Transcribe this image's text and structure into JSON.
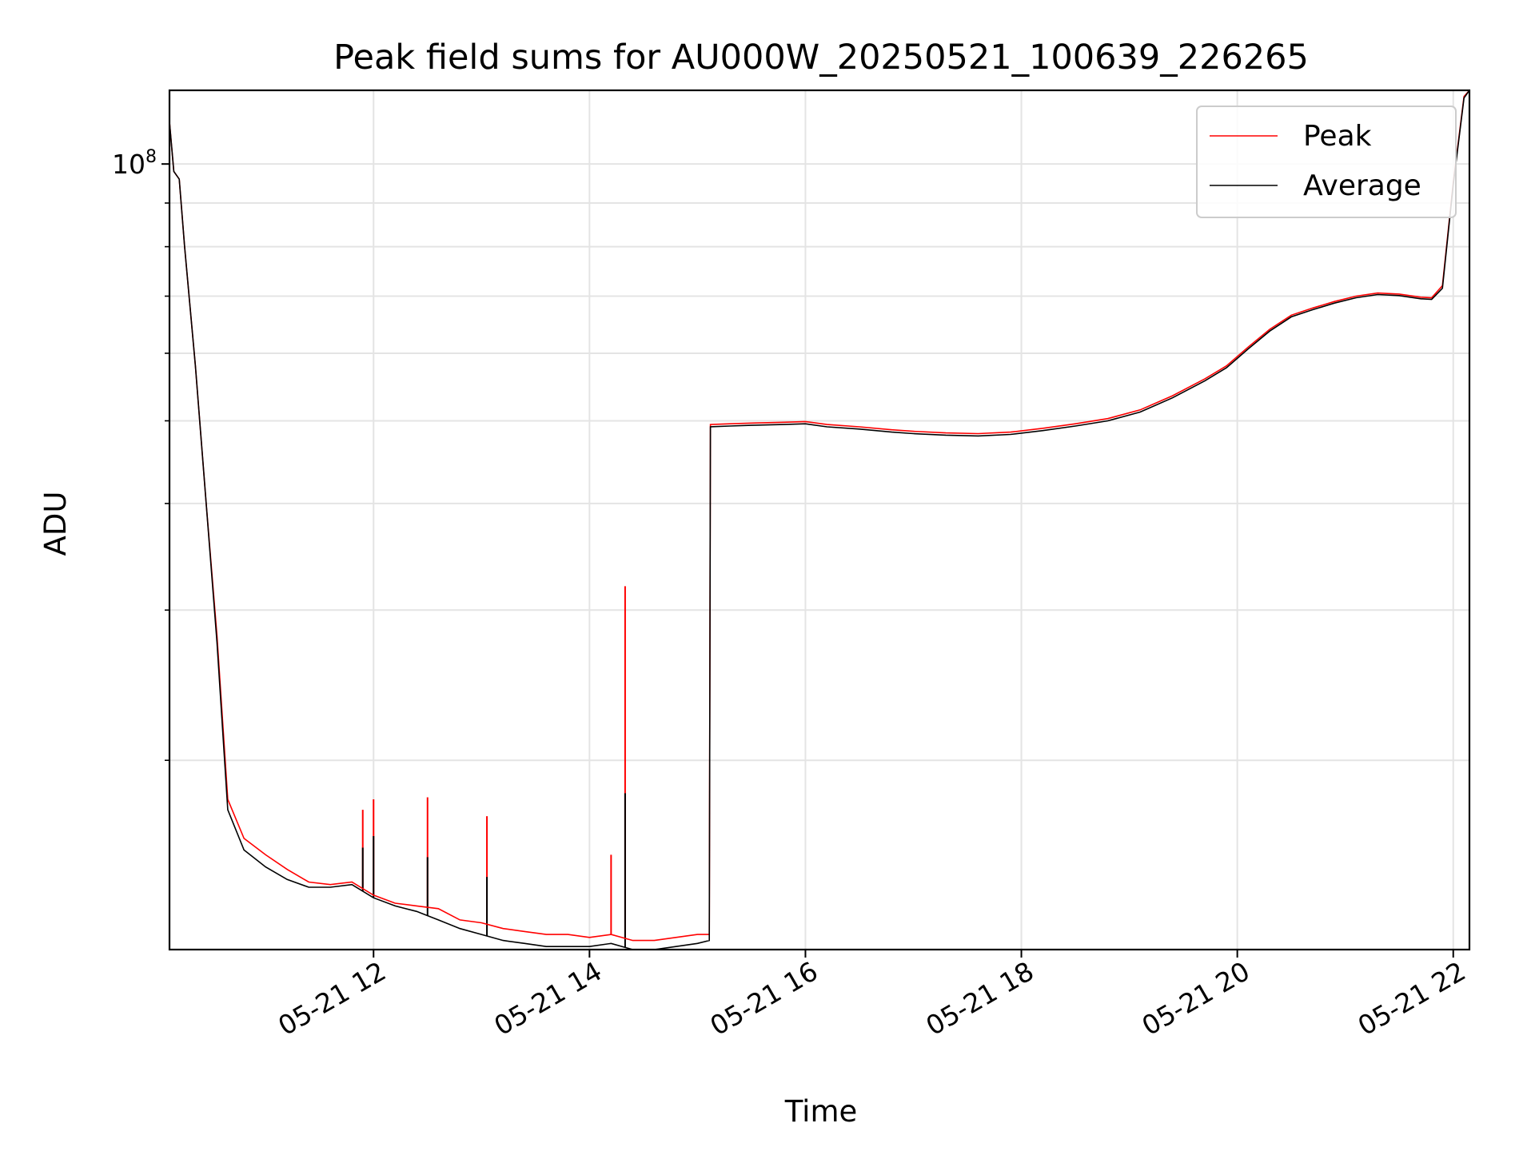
{
  "chart_data": {
    "type": "line",
    "title": "Peak field sums for AU000W_20250521_100639_226265",
    "xlabel": "Time",
    "ylabel": "ADU",
    "y_scale": "log",
    "ylim": [
      12000000,
      122000000
    ],
    "xlim_hours": [
      10.11,
      22.15
    ],
    "grid": true,
    "legend_position": "top-right",
    "y_major_tick_labels": [
      {
        "value": 100000000,
        "base": "10",
        "exp": "8"
      }
    ],
    "y_minor_ticks": [
      20000000,
      30000000,
      40000000,
      50000000,
      60000000,
      70000000,
      80000000,
      90000000
    ],
    "x_tick_labels": [
      "05-21 12",
      "05-21 14",
      "05-21 16",
      "05-21 18",
      "05-21 20",
      "05-21 22"
    ],
    "x_tick_hours": [
      12,
      14,
      16,
      18,
      20,
      22
    ],
    "series": [
      {
        "name": "Peak",
        "color": "#ff0000",
        "x_hours": [
          10.11,
          10.15,
          10.2,
          10.25,
          10.35,
          10.45,
          10.55,
          10.65,
          10.8,
          11.0,
          11.2,
          11.4,
          11.6,
          11.8,
          12.0,
          12.2,
          12.4,
          12.6,
          12.8,
          13.0,
          13.2,
          13.4,
          13.6,
          13.8,
          14.0,
          14.2,
          14.4,
          14.6,
          14.8,
          15.0,
          15.11,
          15.12,
          15.3,
          15.5,
          15.8,
          16.0,
          16.2,
          16.5,
          16.8,
          17.0,
          17.3,
          17.6,
          17.9,
          18.2,
          18.5,
          18.8,
          19.1,
          19.4,
          19.7,
          19.9,
          20.1,
          20.3,
          20.5,
          20.7,
          20.9,
          21.1,
          21.3,
          21.5,
          21.7,
          21.8,
          21.9,
          22.0,
          22.1,
          22.15
        ],
        "y_values": [
          112000000,
          98000000,
          96000000,
          80000000,
          58000000,
          40000000,
          28000000,
          18000000,
          16200000,
          15500000,
          14900000,
          14400000,
          14300000,
          14400000,
          13900000,
          13600000,
          13500000,
          13400000,
          13000000,
          12900000,
          12700000,
          12600000,
          12500000,
          12500000,
          12400000,
          12500000,
          12300000,
          12300000,
          12400000,
          12500000,
          12500000,
          49500000,
          49600000,
          49700000,
          49800000,
          49900000,
          49500000,
          49200000,
          48800000,
          48600000,
          48400000,
          48300000,
          48500000,
          49000000,
          49600000,
          50300000,
          51500000,
          53500000,
          56000000,
          58000000,
          61000000,
          64000000,
          66500000,
          67800000,
          69000000,
          70000000,
          70600000,
          70400000,
          69800000,
          69700000,
          72000000,
          95000000,
          120000000,
          122000000
        ],
        "spikes": [
          {
            "x_hour": 11.9,
            "y": 17500000
          },
          {
            "x_hour": 12.0,
            "y": 18000000
          },
          {
            "x_hour": 12.5,
            "y": 18100000
          },
          {
            "x_hour": 13.05,
            "y": 17200000
          },
          {
            "x_hour": 14.2,
            "y": 15500000
          },
          {
            "x_hour": 14.33,
            "y": 32000000
          }
        ]
      },
      {
        "name": "Average",
        "color": "#000000",
        "x_hours": [
          10.11,
          10.15,
          10.2,
          10.25,
          10.35,
          10.45,
          10.55,
          10.65,
          10.8,
          11.0,
          11.2,
          11.4,
          11.6,
          11.8,
          12.0,
          12.2,
          12.4,
          12.6,
          12.8,
          13.0,
          13.2,
          13.4,
          13.6,
          13.8,
          14.0,
          14.2,
          14.4,
          14.6,
          14.8,
          15.0,
          15.11,
          15.12,
          15.3,
          15.5,
          15.8,
          16.0,
          16.2,
          16.5,
          16.8,
          17.0,
          17.3,
          17.6,
          17.9,
          18.2,
          18.5,
          18.8,
          19.1,
          19.4,
          19.7,
          19.9,
          20.1,
          20.3,
          20.5,
          20.7,
          20.9,
          21.1,
          21.3,
          21.5,
          21.7,
          21.8,
          21.9,
          22.0,
          22.1,
          22.15
        ],
        "y_values": [
          112000000,
          98000000,
          96000000,
          80000000,
          58000000,
          40000000,
          27500000,
          17500000,
          15700000,
          15000000,
          14500000,
          14200000,
          14200000,
          14300000,
          13800000,
          13500000,
          13300000,
          13000000,
          12700000,
          12500000,
          12300000,
          12200000,
          12100000,
          12100000,
          12100000,
          12200000,
          12000000,
          12000000,
          12100000,
          12200000,
          12300000,
          49200000,
          49300000,
          49400000,
          49500000,
          49600000,
          49200000,
          48900000,
          48500000,
          48300000,
          48100000,
          48000000,
          48200000,
          48700000,
          49300000,
          50000000,
          51200000,
          53200000,
          55700000,
          57700000,
          60700000,
          63700000,
          66200000,
          67500000,
          68700000,
          69700000,
          70300000,
          70100000,
          69500000,
          69400000,
          71500000,
          94500000,
          119500000,
          122000000
        ],
        "spikes": [
          {
            "x_hour": 11.9,
            "y": 15800000
          },
          {
            "x_hour": 12.0,
            "y": 16300000
          },
          {
            "x_hour": 12.5,
            "y": 15400000
          },
          {
            "x_hour": 13.05,
            "y": 14600000
          },
          {
            "x_hour": 14.33,
            "y": 18300000
          }
        ]
      }
    ]
  }
}
